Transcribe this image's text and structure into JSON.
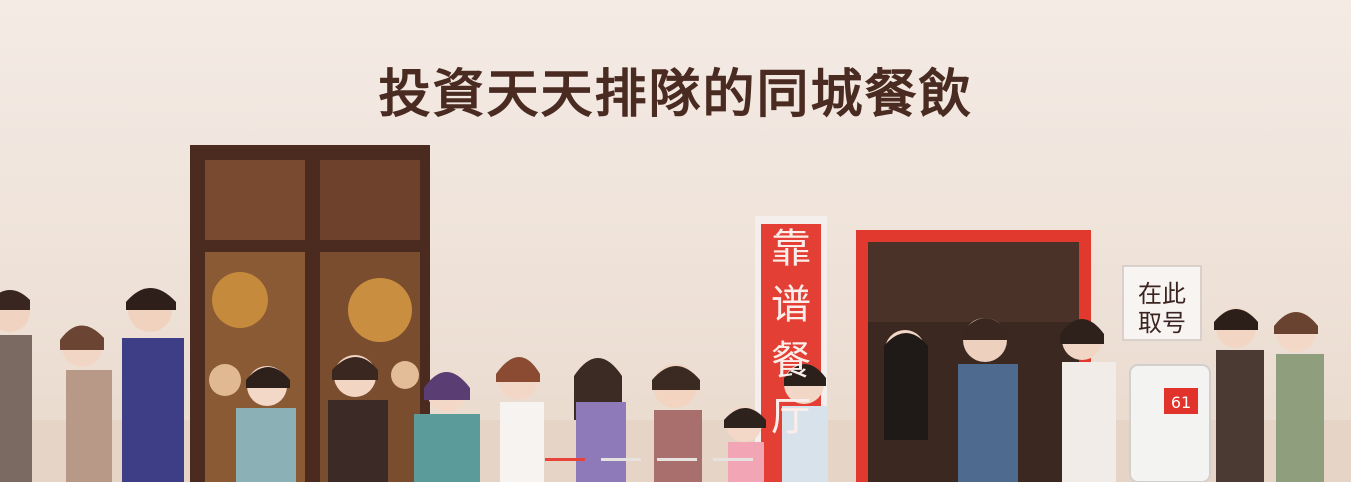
{
  "banner": {
    "title": "投資天天排隊的同城餐飲",
    "signs": {
      "red_vertical": "靠谱餐厅",
      "ticket": [
        "在此",
        "取号"
      ]
    },
    "ticket_machine_display": "61"
  },
  "carousel": {
    "slides": 4,
    "active_index": 0
  },
  "colors": {
    "title": "#4a2b22",
    "accent": "#e8433a",
    "inactive_dot": "#e6e2df"
  }
}
